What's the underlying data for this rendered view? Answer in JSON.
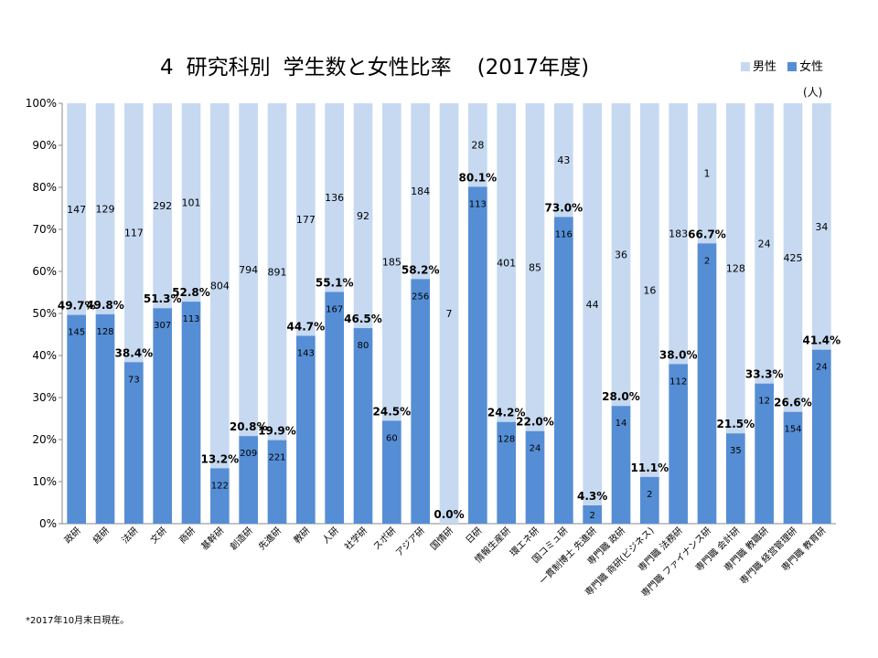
{
  "chart_data": {
    "type": "bar",
    "stacked": true,
    "normalized": true,
    "title_num": "4",
    "title_main": "研究科別",
    "title_sub": "学生数と女性比率",
    "title_year": "(2017年度)",
    "unit": "(人)",
    "legend_position": "top-right",
    "ylim": [
      0,
      100
    ],
    "y_ticks": [
      "0%",
      "10%",
      "20%",
      "30%",
      "40%",
      "50%",
      "60%",
      "70%",
      "80%",
      "90%",
      "100%"
    ],
    "categories": [
      "政研",
      "経研",
      "法研",
      "文研",
      "商研",
      "基幹研",
      "創造研",
      "先進研",
      "教研",
      "人研",
      "社学研",
      "スポ研",
      "アジア研",
      "国情研",
      "日研",
      "情報生産研",
      "環エネ研",
      "国コミュ研",
      "一貫制博士 先進研",
      "専門職 政研",
      "専門職 商研(ビジネス)",
      "専門職 法務研",
      "専門職 ファイナンス研",
      "専門職 会計研",
      "専門職 教職研",
      "専門職 経営管理研",
      "専門職 教育研"
    ],
    "series": [
      {
        "name": "男性",
        "color": "#c6d9f1",
        "values": [
          147,
          129,
          117,
          292,
          101,
          804,
          794,
          891,
          177,
          136,
          92,
          185,
          184,
          7,
          28,
          401,
          85,
          43,
          44,
          36,
          16,
          183,
          1,
          128,
          24,
          425,
          34
        ]
      },
      {
        "name": "女性",
        "color": "#558ed5",
        "values": [
          145,
          128,
          73,
          307,
          113,
          122,
          209,
          221,
          143,
          167,
          80,
          60,
          256,
          0,
          113,
          128,
          24,
          116,
          2,
          14,
          2,
          112,
          2,
          35,
          12,
          154,
          24
        ]
      }
    ],
    "female_ratio": [
      49.7,
      49.8,
      38.4,
      51.3,
      52.8,
      13.2,
      20.8,
      19.9,
      44.7,
      55.1,
      46.5,
      24.5,
      58.2,
      0.0,
      80.1,
      24.2,
      22.0,
      73.0,
      4.3,
      28.0,
      11.1,
      38.0,
      66.7,
      21.5,
      33.3,
      26.6,
      41.4
    ],
    "female_ratio_labels": [
      "49.7%",
      "49.8%",
      "38.4%",
      "51.3%",
      "52.8%",
      "13.2%",
      "20.8%",
      "19.9%",
      "44.7%",
      "55.1%",
      "46.5%",
      "24.5%",
      "58.2%",
      "0.0%",
      "80.1%",
      "24.2%",
      "22.0%",
      "73.0%",
      "4.3%",
      "28.0%",
      "11.1%",
      "38.0%",
      "66.7%",
      "21.5%",
      "33.3%",
      "26.6%",
      "41.4%"
    ],
    "grid": false
  },
  "footnote": "*2017年10月末日現在。"
}
